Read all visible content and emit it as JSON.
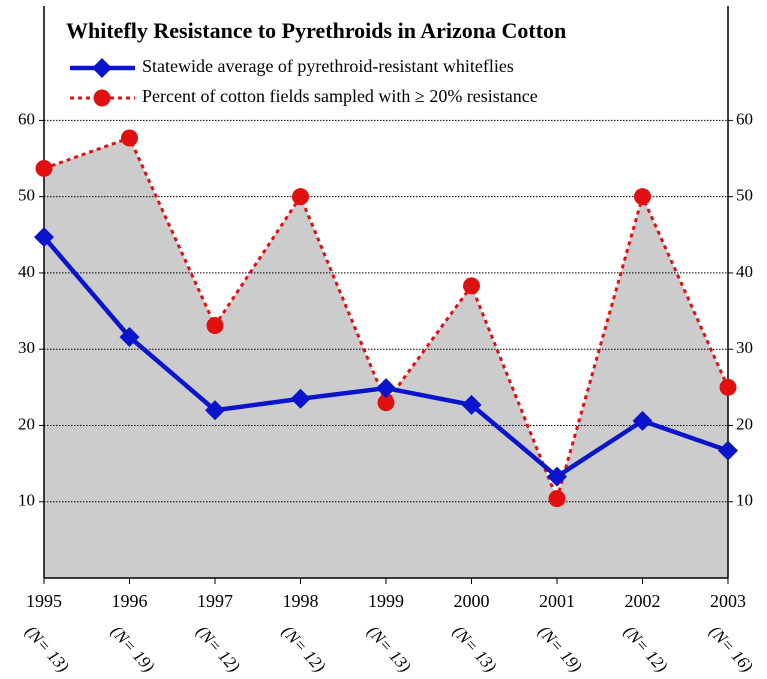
{
  "chart_data": {
    "type": "line",
    "title": "Whitefly Resistance to Pyrethroids in Arizona Cotton",
    "categories": [
      "1995",
      "1996",
      "1997",
      "1998",
      "1999",
      "2000",
      "2001",
      "2002",
      "2003"
    ],
    "sample_sizes": [
      "(N= 13)",
      "(N= 19)",
      "(N= 12)",
      "(N= 12)",
      "(N= 13)",
      "(N= 13)",
      "(N= 19)",
      "(N= 12)",
      "(N= 16)"
    ],
    "series": [
      {
        "name": "Statewide average of pyrethroid-resistant whiteflies",
        "color": "#0a14cc",
        "values": [
          44.7,
          31.6,
          22.0,
          23.5,
          24.9,
          22.7,
          13.3,
          20.6,
          16.7
        ]
      },
      {
        "name": "Percent of cotton fields sampled with ≥ 20% resistance",
        "color": "#e01010",
        "area_color": "#cccccc",
        "values": [
          53.7,
          57.7,
          33.1,
          50.0,
          23.0,
          38.3,
          10.4,
          50.0,
          25.0
        ]
      }
    ],
    "ylim": [
      0,
      75
    ],
    "yticks": [
      10,
      20,
      30,
      40,
      50,
      60
    ],
    "grid": true
  }
}
